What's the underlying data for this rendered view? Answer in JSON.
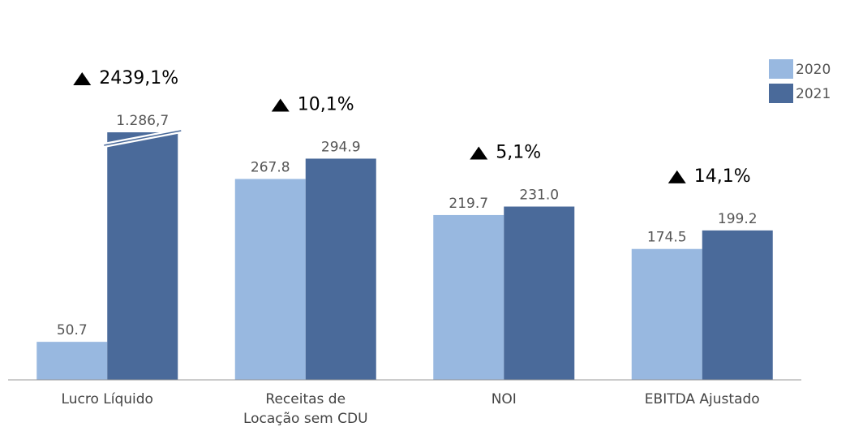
{
  "chart_data": {
    "type": "bar",
    "categories": [
      "Lucro Líquido",
      "Receitas de\nLocação sem CDU",
      "NOI",
      "EBITDA Ajustado"
    ],
    "series": [
      {
        "name": "2020",
        "color": "#98b8e0",
        "values": [
          50.7,
          267.8,
          219.7,
          174.5
        ],
        "value_labels": [
          "50.7",
          "267.8",
          "219.7",
          "174.5"
        ]
      },
      {
        "name": "2021",
        "color": "#4a6a9a",
        "values": [
          1286.7,
          294.9,
          231.0,
          199.2
        ],
        "value_labels": [
          "1.286,7",
          "294.9",
          "231.0",
          "199.2"
        ]
      }
    ],
    "annotations": [
      "2439,1%",
      "10,1%",
      "5,1%",
      "14,1%"
    ],
    "ylim": [
      0,
      330
    ],
    "axis_break": true,
    "legend": "top-right"
  }
}
